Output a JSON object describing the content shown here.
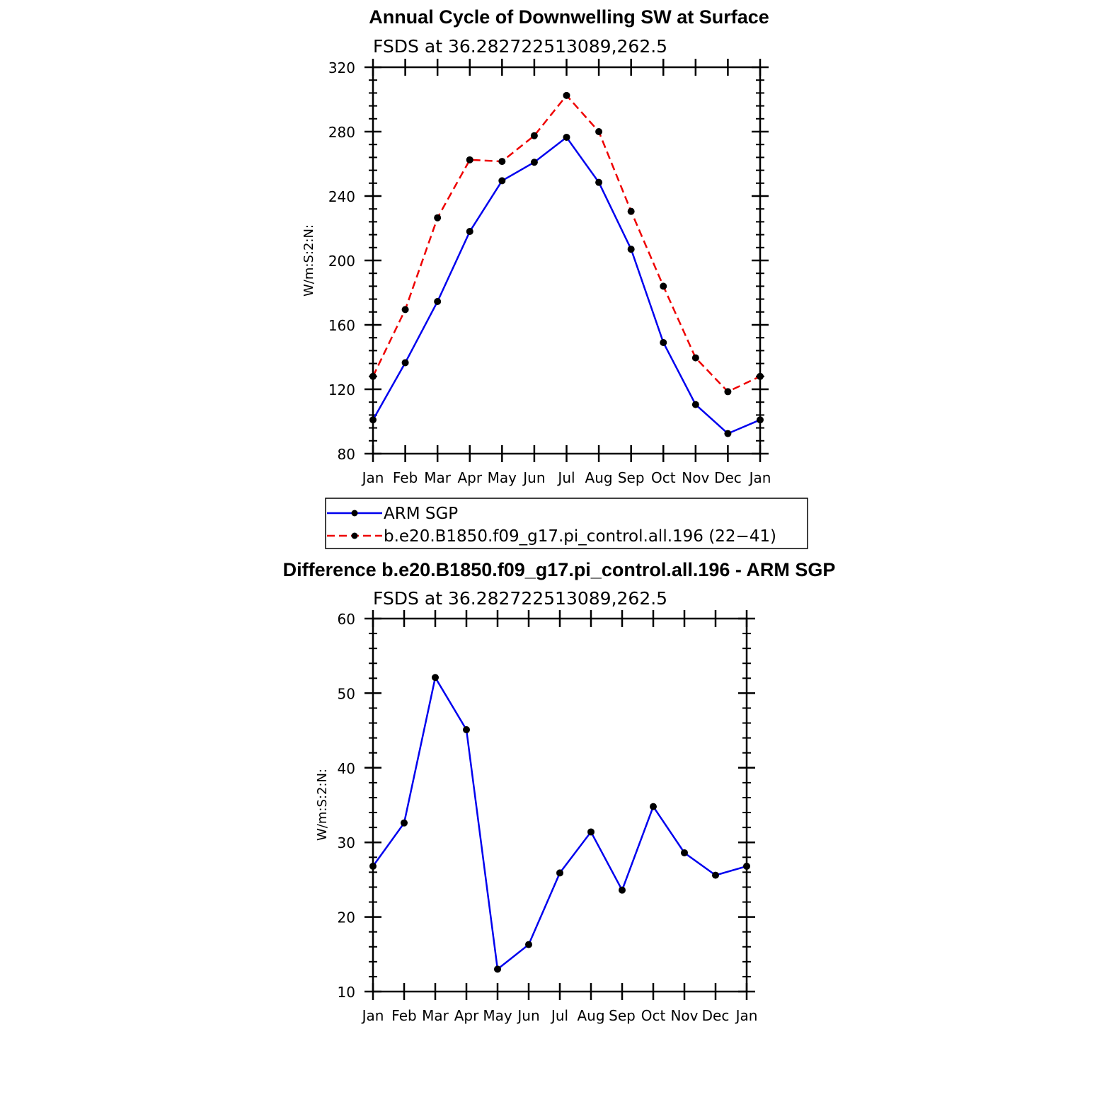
{
  "chart_data": [
    {
      "type": "line",
      "title": "Annual Cycle of Downwelling SW at Surface",
      "subtitle": "FSDS at 36.282722513089,262.5",
      "ylabel": "W/m:S:2:N:",
      "xlabel": "",
      "ylim": [
        80,
        320
      ],
      "yticks": [
        80,
        120,
        160,
        200,
        240,
        280,
        320
      ],
      "categories": [
        "Jan",
        "Feb",
        "Mar",
        "Apr",
        "May",
        "Jun",
        "Jul",
        "Aug",
        "Sep",
        "Oct",
        "Nov",
        "Dec",
        "Jan"
      ],
      "series": [
        {
          "name": "ARM SGP",
          "color": "#0000ee",
          "dash": "solid",
          "values": [
            101,
            136.5,
            174.5,
            218,
            249.5,
            261,
            276.5,
            248.5,
            207,
            149,
            110.5,
            92.5,
            101
          ]
        },
        {
          "name": "b.e20.B1850.f09_g17.pi_control.all.196 (22−41)",
          "color": "#ee0000",
          "dash": "dashed",
          "values": [
            128,
            169.5,
            226.5,
            262.5,
            261.5,
            277.5,
            302.5,
            280,
            230.5,
            184,
            139.5,
            118.5,
            128
          ]
        }
      ],
      "legend": "below"
    },
    {
      "type": "line",
      "title": "Difference b.e20.B1850.f09_g17.pi_control.all.196 - ARM SGP",
      "subtitle": "FSDS at 36.282722513089,262.5",
      "ylabel": "W/m:S:2:N:",
      "xlabel": "",
      "ylim": [
        10,
        60
      ],
      "yticks": [
        10,
        20,
        30,
        40,
        50,
        60
      ],
      "categories": [
        "Jan",
        "Feb",
        "Mar",
        "Apr",
        "May",
        "Jun",
        "Jul",
        "Aug",
        "Sep",
        "Oct",
        "Nov",
        "Dec",
        "Jan"
      ],
      "series": [
        {
          "color": "#0000ee",
          "dash": "solid",
          "values": [
            26.8,
            32.6,
            52.1,
            45.1,
            13,
            16.3,
            25.9,
            31.4,
            23.6,
            34.8,
            28.6,
            25.6,
            26.8
          ]
        }
      ]
    }
  ]
}
